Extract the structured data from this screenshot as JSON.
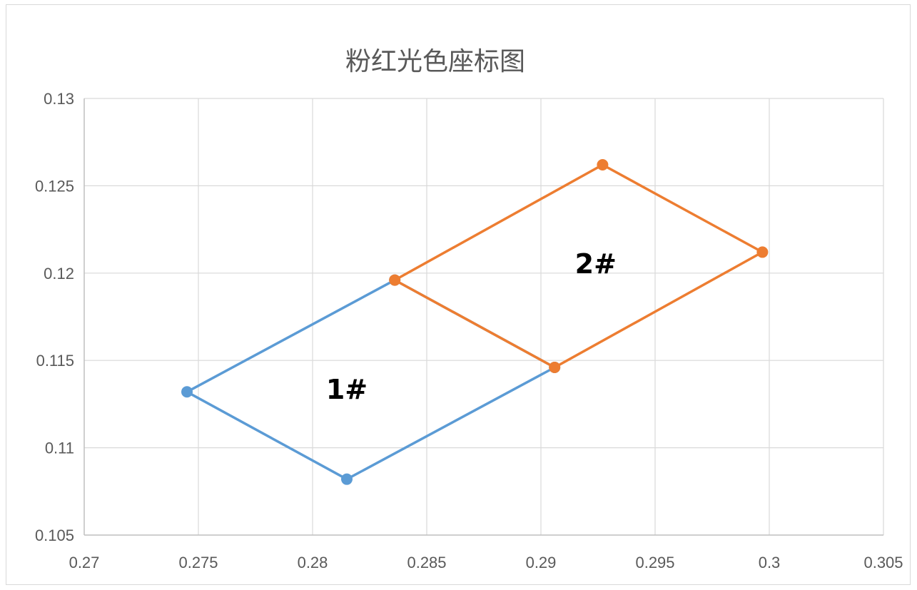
{
  "chart_data": {
    "type": "scatter",
    "title": "粉红光色座标图",
    "xlabel": "",
    "ylabel": "",
    "xlim": [
      0.27,
      0.305
    ],
    "ylim": [
      0.105,
      0.13
    ],
    "x_ticks": [
      0.27,
      0.275,
      0.28,
      0.285,
      0.29,
      0.295,
      0.3,
      0.305
    ],
    "x_tick_labels": [
      "0.27",
      "0.275",
      "0.28",
      "0.285",
      "0.29",
      "0.295",
      "0.3",
      "0.305"
    ],
    "y_ticks": [
      0.105,
      0.11,
      0.115,
      0.12,
      0.125,
      0.13
    ],
    "y_tick_labels": [
      "0.105",
      "0.11",
      "0.115",
      "0.12",
      "0.125",
      "0.13"
    ],
    "grid": true,
    "series": [
      {
        "color": "#5b9bd5",
        "points": [
          {
            "x": 0.2745,
            "y": 0.1132
          },
          {
            "x": 0.2836,
            "y": 0.1196
          },
          {
            "x": 0.2906,
            "y": 0.1146
          },
          {
            "x": 0.2815,
            "y": 0.1082
          },
          {
            "x": 0.2745,
            "y": 0.1132
          }
        ]
      },
      {
        "color": "#ed7d31",
        "points": [
          {
            "x": 0.2836,
            "y": 0.1196
          },
          {
            "x": 0.2927,
            "y": 0.1262
          },
          {
            "x": 0.2997,
            "y": 0.1212
          },
          {
            "x": 0.2906,
            "y": 0.1146
          },
          {
            "x": 0.2836,
            "y": 0.1196
          }
        ]
      }
    ],
    "annotations": [
      {
        "text": "1#",
        "x": 0.2815,
        "y": 0.1128
      },
      {
        "text": "2#",
        "x": 0.2924,
        "y": 0.12
      }
    ]
  }
}
